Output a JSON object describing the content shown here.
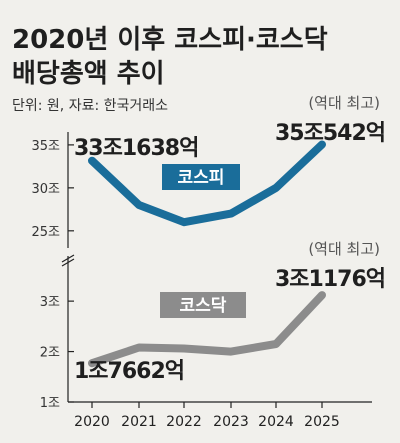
{
  "title_line1": "2020년 이후 코스피·코스닥",
  "title_line2": "배당총액 추이",
  "source": "단위: 원, 자료: 한국거래소",
  "colors": {
    "kospi": "#1a6d9a",
    "kosdaq": "#8c8c8c",
    "background": "#f1f0ec",
    "text": "#1f1f1f"
  },
  "chart_data": [
    {
      "type": "line",
      "name": "코스피",
      "x": [
        "2020",
        "2021",
        "2022",
        "2023",
        "2024",
        "2025"
      ],
      "values": [
        33.16,
        28.0,
        26.0,
        27.0,
        30.0,
        35.05
      ],
      "ylim": [
        23,
        36.5
      ],
      "yticks": [
        35,
        30,
        25
      ],
      "ytick_labels": [
        "35조",
        "30조",
        "25조"
      ],
      "series_label": "코스피",
      "annotations": {
        "start": "33조1638억",
        "end": "35조542억",
        "note": "(역대 최고)"
      }
    },
    {
      "type": "line",
      "name": "코스닥",
      "x": [
        "2020",
        "2021",
        "2022",
        "2023",
        "2024",
        "2025"
      ],
      "values": [
        1.77,
        2.08,
        2.06,
        2.0,
        2.15,
        3.12
      ],
      "ylim": [
        1.0,
        3.3
      ],
      "yticks": [
        3,
        2,
        1
      ],
      "ytick_labels": [
        "3조",
        "2조",
        "1조"
      ],
      "series_label": "코스닥",
      "annotations": {
        "start": "1조7662억",
        "end": "3조1176억",
        "note": "(역대 최고)"
      }
    }
  ],
  "x_labels": [
    "2020",
    "2021",
    "2022",
    "2023",
    "2024",
    "2025"
  ]
}
